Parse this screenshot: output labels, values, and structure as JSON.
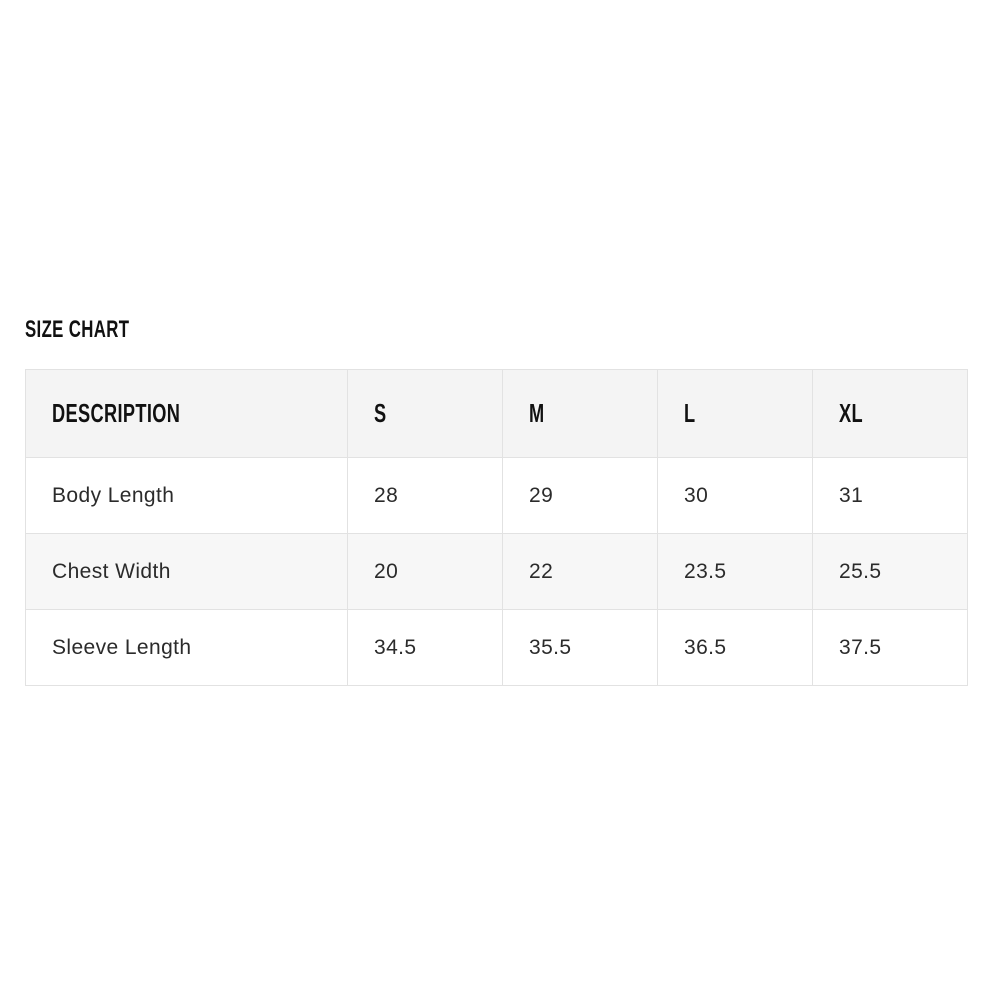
{
  "section": {
    "title": "SIZE CHART"
  },
  "table": {
    "columns": [
      "DESCRIPTION",
      "S",
      "M",
      "L",
      "XL"
    ],
    "rows": [
      {
        "label": "Body Length",
        "values": [
          "28",
          "29",
          "30",
          "31"
        ]
      },
      {
        "label": "Chest Width",
        "values": [
          "20",
          "22",
          "23.5",
          "25.5"
        ]
      },
      {
        "label": "Sleeve Length",
        "values": [
          "34.5",
          "35.5",
          "36.5",
          "37.5"
        ]
      }
    ],
    "colors": {
      "header_bg": "#f4f4f4",
      "alt_row_bg": "#f7f7f7",
      "border": "#e2e2e2",
      "text": "#2b2b2b",
      "heading_text": "#111111"
    }
  }
}
